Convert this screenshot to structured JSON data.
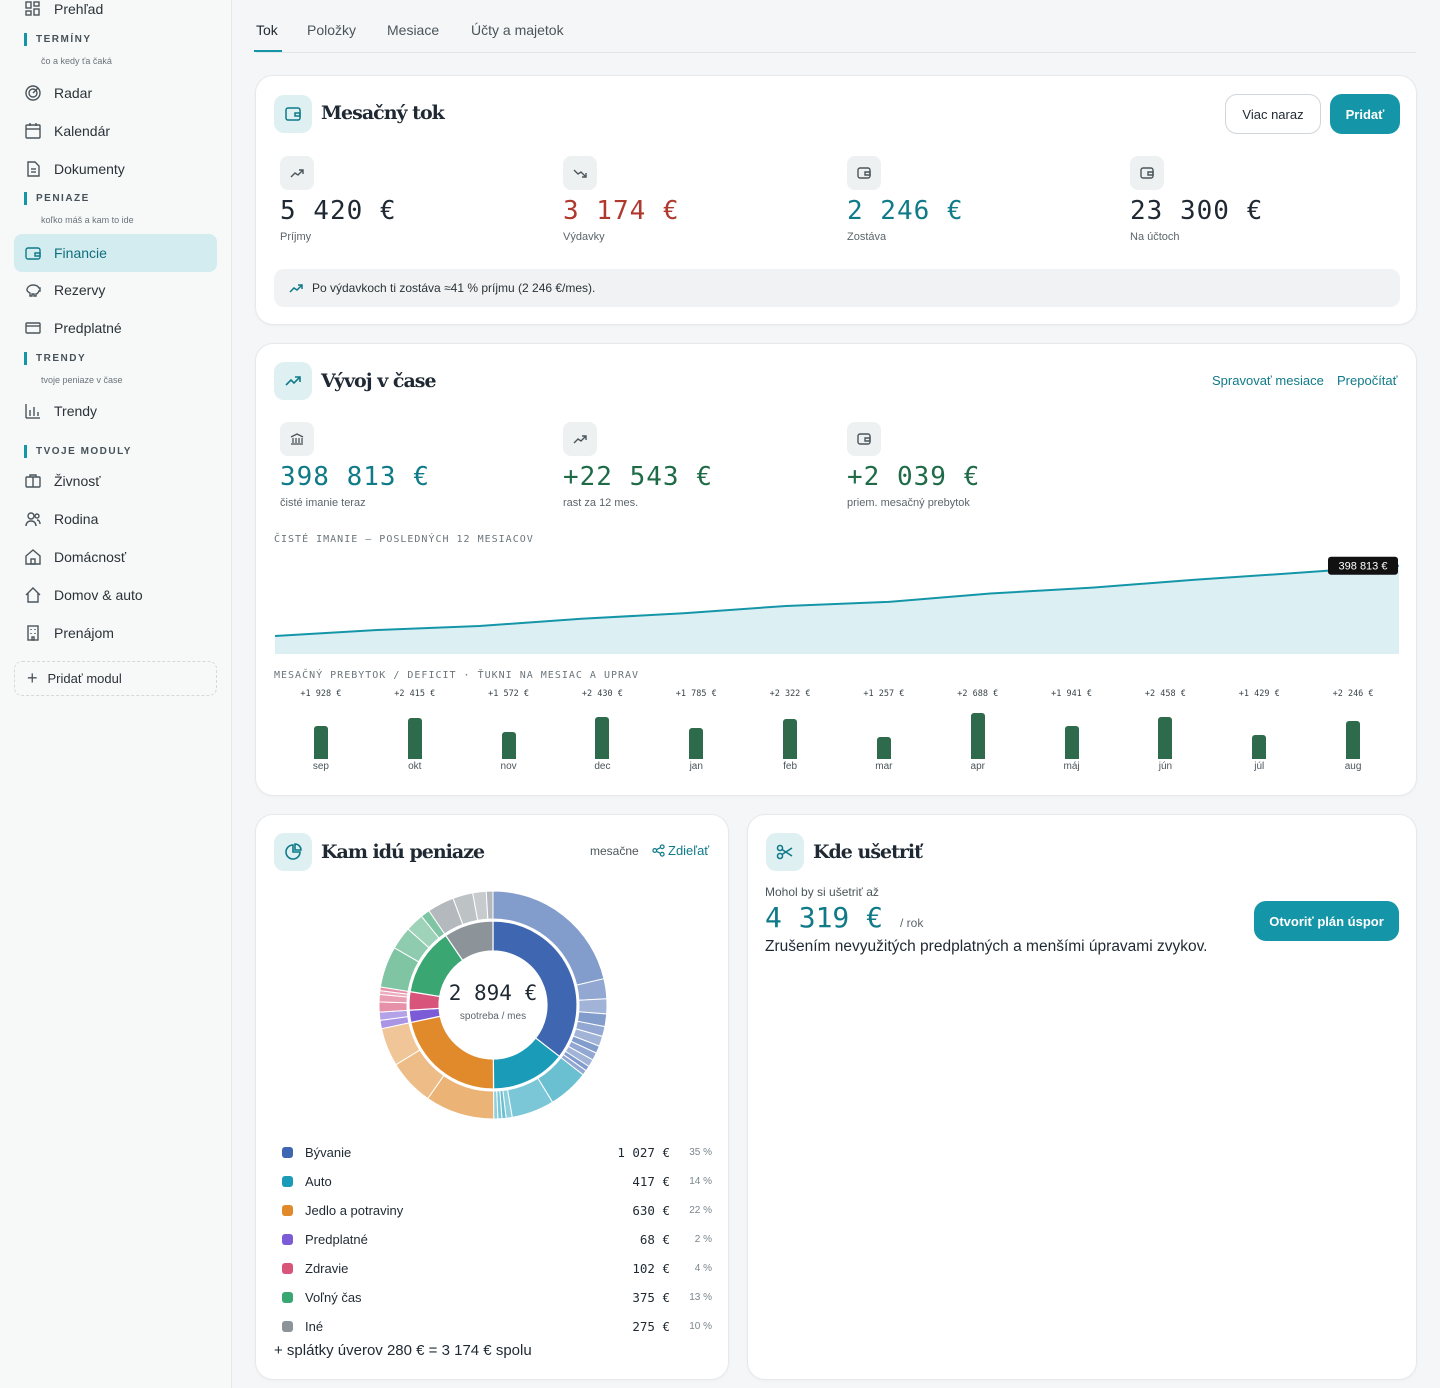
{
  "sidebar": {
    "items": [
      {
        "label": "Prehľad",
        "icon": "grid-icon"
      },
      {
        "label": "Radar",
        "icon": "radar-icon"
      },
      {
        "label": "Kalendár",
        "icon": "calendar-icon"
      },
      {
        "label": "Dokumenty",
        "icon": "document-icon"
      },
      {
        "label": "Financie",
        "icon": "wallet-icon"
      },
      {
        "label": "Rezervy",
        "icon": "piggy-bank-icon"
      },
      {
        "label": "Predplatné",
        "icon": "credit-card-icon"
      },
      {
        "label": "Trendy",
        "icon": "bar-chart-icon"
      },
      {
        "label": "Živnosť",
        "icon": "briefcase-icon"
      },
      {
        "label": "Rodina",
        "icon": "people-icon"
      },
      {
        "label": "Domácnosť",
        "icon": "house-icon"
      },
      {
        "label": "Domov & auto",
        "icon": "home-icon"
      },
      {
        "label": "Prenájom",
        "icon": "building-icon"
      }
    ],
    "sections": [
      {
        "title": "TERMÍNY",
        "subtitle": "čo a kedy ťa čaká"
      },
      {
        "title": "PENIAZE",
        "subtitle": "koľko máš a kam to ide"
      },
      {
        "title": "TRENDY",
        "subtitle": "tvoje peniaze v čase"
      },
      {
        "title": "TVOJE MODULY",
        "subtitle": ""
      }
    ],
    "add_module": "Pridať modul"
  },
  "tabs": [
    "Tok",
    "Položky",
    "Mesiace",
    "Účty a majetok"
  ],
  "flow": {
    "title": "Mesačný tok",
    "btn_multi": "Viac naraz",
    "btn_add": "Pridať",
    "stats": [
      {
        "value": "5 420 €",
        "label": "Príjmy",
        "color": "#1f2933"
      },
      {
        "value": "3 174 €",
        "label": "Výdavky",
        "color": "#b0392f"
      },
      {
        "value": "2 246 €",
        "label": "Zostáva",
        "color": "#0f7a88"
      },
      {
        "value": "23 300 €",
        "label": "Na účtoch",
        "color": "#1f2933"
      }
    ],
    "info": "Po výdavkoch ti zostáva ≈41 % príjmu (2 246 €/mes)."
  },
  "trend": {
    "title": "Vývoj v čase",
    "link_manage": "Spravovať mesiace",
    "link_recalc": "Prepočítať",
    "stats": [
      {
        "value": "398 813 €",
        "label": "čisté imanie teraz",
        "color": "#0f7a88"
      },
      {
        "value": "+22 543 €",
        "label": "rast za 12 mes.",
        "color": "#1f6b48"
      },
      {
        "value": "+2 039 €",
        "label": "priem. mesačný prebytok",
        "color": "#1f6b48"
      }
    ],
    "networth_caption": "ČISTÉ IMANIE — POSLEDNÝCH 12 MESIACOV",
    "networth_tag": "398 813 €",
    "bars_caption": "MESAČNÝ PREBYTOK / DEFICIT · ŤUKNI NA MESIAC A UPRAV"
  },
  "spending": {
    "title": "Kam idú peniaze",
    "period": "mesačne",
    "share": "Zdieľať",
    "center_value": "2 894 €",
    "center_label": "spotreba / mes",
    "footer": "+ splátky úverov 280 € = 3 174 € spolu",
    "categories": [
      {
        "name": "Bývanie",
        "amount": "1 027 €",
        "pct": "35 %",
        "color": "#3f66b0"
      },
      {
        "name": "Auto",
        "amount": "417 €",
        "pct": "14 %",
        "color": "#1a9cb8"
      },
      {
        "name": "Jedlo a potraviny",
        "amount": "630 €",
        "pct": "22 %",
        "color": "#e08a2c"
      },
      {
        "name": "Predplatné",
        "amount": "68 €",
        "pct": "2 %",
        "color": "#7c5cd6"
      },
      {
        "name": "Zdravie",
        "amount": "102 €",
        "pct": "4 %",
        "color": "#d9547a"
      },
      {
        "name": "Voľný čas",
        "amount": "375 €",
        "pct": "13 %",
        "color": "#3aa672"
      },
      {
        "name": "Iné",
        "amount": "275 €",
        "pct": "10 %",
        "color": "#8c949a"
      }
    ]
  },
  "savings": {
    "title": "Kde ušetriť",
    "intro": "Mohol by si ušetriť až",
    "value": "4 319 €",
    "unit": "/ rok",
    "desc": "Zrušením nevyužitých predplatných a menšími úpravami zvykov.",
    "button": "Otvoriť plán úspor"
  },
  "chart_data": [
    {
      "type": "area",
      "title": "ČISTÉ IMANIE — POSLEDNÝCH 12 MESIACOV",
      "categories": [
        "sep",
        "okt",
        "nov",
        "dec",
        "jan",
        "feb",
        "mar",
        "apr",
        "máj",
        "jún",
        "júl",
        "aug"
      ],
      "values": [
        376270,
        378200,
        379500,
        381800,
        383600,
        385900,
        387200,
        389900,
        391800,
        394300,
        396500,
        398813
      ],
      "ylim": [
        375000,
        400000
      ],
      "annotation": "398 813 €",
      "color": "#1596a8"
    },
    {
      "type": "bar",
      "title": "MESAČNÝ PREBYTOK / DEFICIT · ŤUKNI NA MESIAC A UPRAV",
      "categories": [
        "sep",
        "okt",
        "nov",
        "dec",
        "jan",
        "feb",
        "mar",
        "apr",
        "máj",
        "jún",
        "júl",
        "aug"
      ],
      "values": [
        1928,
        2415,
        1572,
        2430,
        1785,
        2322,
        1257,
        2688,
        1941,
        2458,
        1429,
        2246
      ],
      "labels": [
        "+1 928 €",
        "+2 415 €",
        "+1 572 €",
        "+2 430 €",
        "+1 785 €",
        "+2 322 €",
        "+1 257 €",
        "+2 688 €",
        "+1 941 €",
        "+2 458 €",
        "+1 429 €",
        "+2 246 €"
      ],
      "color": "#2e6b4c"
    },
    {
      "type": "pie",
      "title": "Kam idú peniaze",
      "categories": [
        "Bývanie",
        "Auto",
        "Jedlo a potraviny",
        "Predplatné",
        "Zdravie",
        "Voľný čas",
        "Iné"
      ],
      "values": [
        1027,
        417,
        630,
        68,
        102,
        375,
        275
      ],
      "colors": [
        "#3f66b0",
        "#1a9cb8",
        "#e08a2c",
        "#7c5cd6",
        "#d9547a",
        "#3aa672",
        "#8c949a"
      ]
    }
  ]
}
